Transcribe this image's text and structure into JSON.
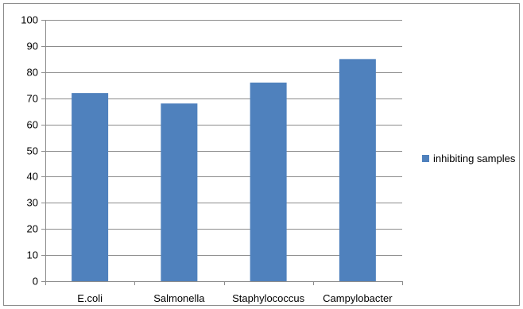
{
  "chart_data": {
    "type": "bar",
    "categories": [
      "E.coli",
      "Salmonella",
      "Staphylococcus",
      "Campylobacter"
    ],
    "series": [
      {
        "name": "inhibiting samples",
        "values": [
          72,
          68,
          76,
          85
        ],
        "color": "#4f81bd"
      }
    ],
    "ylim": [
      0,
      100
    ],
    "yticks": [
      0,
      10,
      20,
      30,
      40,
      50,
      60,
      70,
      80,
      90,
      100
    ],
    "grid": true,
    "legend_position": "right"
  }
}
